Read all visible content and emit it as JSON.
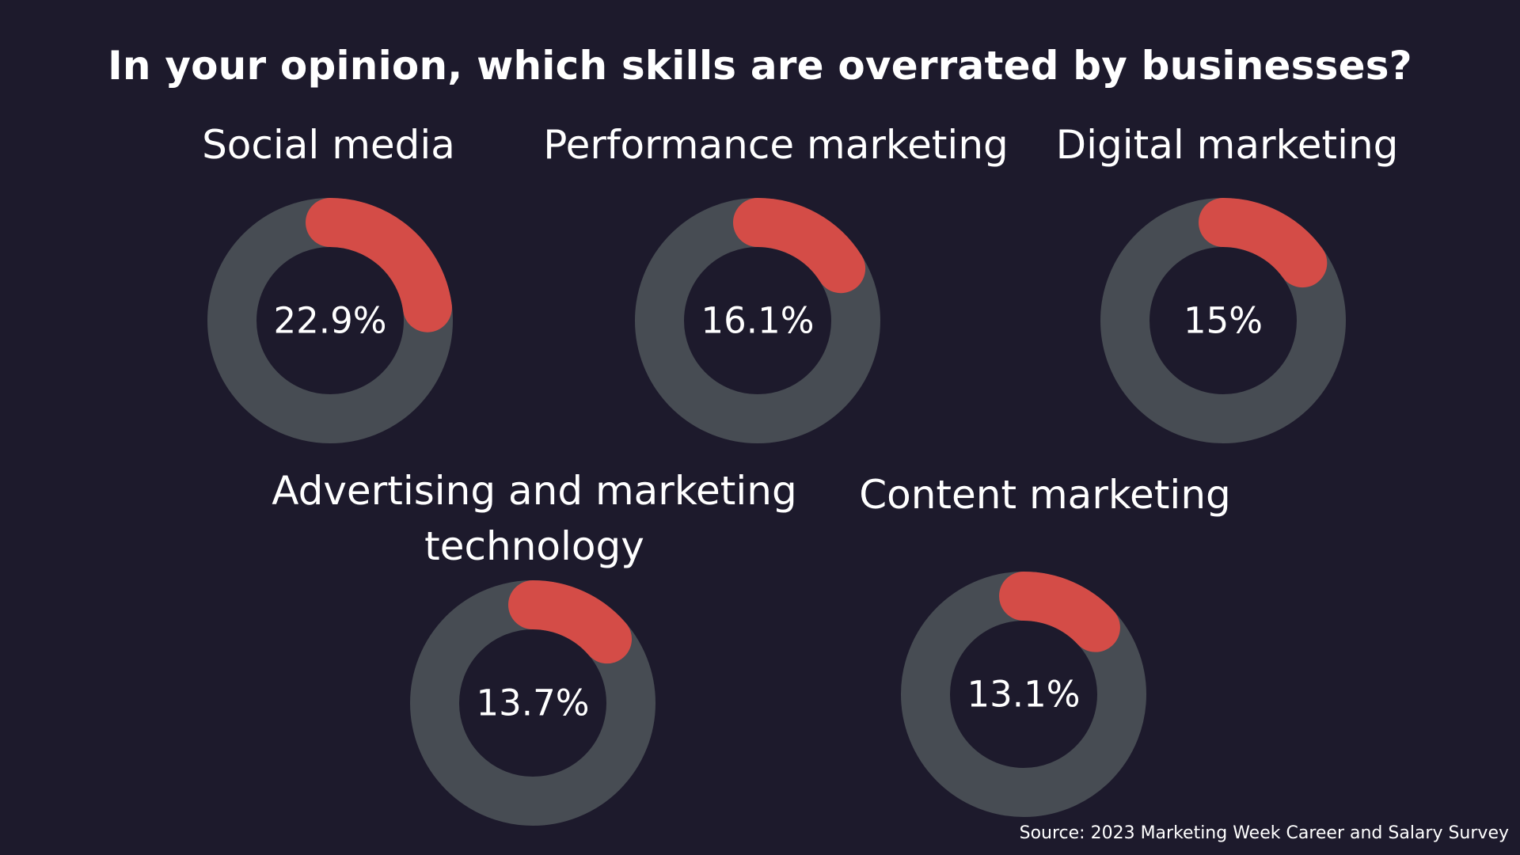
{
  "colors": {
    "background": "#1d1a2c",
    "track": "#474c53",
    "highlight": "#d44c47",
    "text": "#ffffff"
  },
  "chart_data": {
    "type": "donut",
    "title": "In your opinion, which skills are overrated by businesses?",
    "source": "Source: 2023 Marketing Week Career and Salary Survey",
    "categories": [
      "Social media",
      "Performance marketing",
      "Digital marketing",
      "Advertising and marketing technology",
      "Content marketing"
    ],
    "values": [
      22.9,
      16.1,
      15,
      13.7,
      13.1
    ],
    "labels": [
      "22.9%",
      "16.1%",
      "15%",
      "13.7%",
      "13.1%"
    ],
    "unit": "%"
  }
}
